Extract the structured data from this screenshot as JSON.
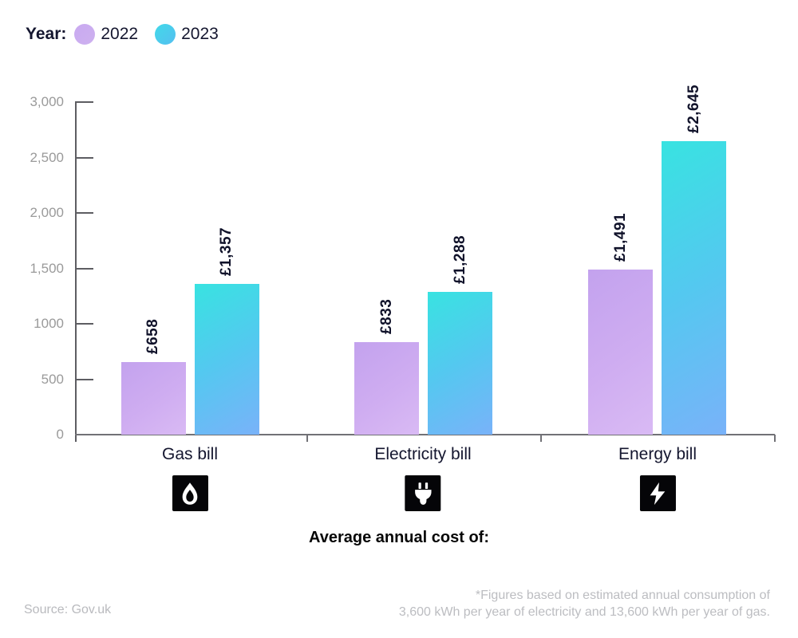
{
  "legend": {
    "title": "Year:",
    "items": [
      {
        "label": "2022",
        "color": "#c9a9f0"
      },
      {
        "label": "2023",
        "color": "#4bc9ec"
      }
    ]
  },
  "chart_data": {
    "type": "bar",
    "categories": [
      "Gas bill",
      "Electricity bill",
      "Energy bill"
    ],
    "series": [
      {
        "name": "2022",
        "values": [
          658,
          833,
          1491
        ]
      },
      {
        "name": "2023",
        "values": [
          1357,
          1288,
          2645
        ]
      }
    ],
    "value_labels": [
      [
        "£658",
        "£833",
        "£1,491"
      ],
      [
        "£1,357",
        "£1,288",
        "£2,645"
      ]
    ],
    "y_ticks": [
      "3,000",
      "2,500",
      "2,000",
      "1,500",
      "1000",
      "500",
      "0"
    ],
    "y_tick_values": [
      3000,
      2500,
      2000,
      1500,
      1000,
      500,
      0
    ],
    "ylim": [
      0,
      3000
    ],
    "xlabel": "Average annual cost of:",
    "grid": false,
    "legend_position": "top-left",
    "bar_colors": {
      "2022": [
        "#c3a2ee",
        "#d9baf4"
      ],
      "2023": [
        "#38e3e1",
        "#79b2f9"
      ]
    }
  },
  "category_icons": [
    "flame-icon",
    "plug-icon",
    "bolt-icon"
  ],
  "footer": {
    "source": "Source: Gov.uk",
    "note_line1": "*Figures based on estimated annual consumption of",
    "note_line2": "3,600 kWh per year of electricity and 13,600 kWh per year of gas."
  }
}
